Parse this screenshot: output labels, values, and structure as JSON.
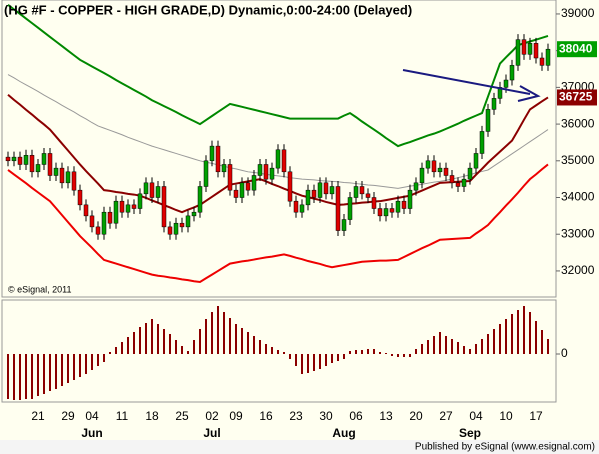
{
  "chart_data": [
    {
      "type": "candlestick",
      "title": "(HG #F - COPPER - HIGH GRADE,D) Dynamic,0:00-24:00 (Delayed)",
      "annotation": "© eSignal, 2011",
      "categories": [
        null,
        null,
        null,
        null,
        null,
        "21",
        null,
        null,
        null,
        null,
        "29",
        null,
        null,
        null,
        "04",
        null,
        null,
        null,
        null,
        "11",
        null,
        null,
        null,
        null,
        "18",
        null,
        null,
        null,
        null,
        "25",
        null,
        null,
        null,
        null,
        "02",
        null,
        null,
        null,
        "09",
        null,
        null,
        null,
        null,
        "16",
        null,
        null,
        null,
        null,
        "23",
        null,
        null,
        null,
        null,
        "30",
        null,
        null,
        null,
        null,
        "06",
        null,
        null,
        null,
        null,
        "13",
        null,
        null,
        null,
        null,
        "20",
        null,
        null,
        null,
        null,
        "27",
        null,
        null,
        null,
        null,
        "04",
        null,
        null,
        null,
        null,
        "10",
        null,
        null,
        null,
        null,
        "17",
        null,
        null
      ],
      "month_labels": [
        null,
        null,
        null,
        null,
        null,
        null,
        null,
        null,
        null,
        null,
        null,
        null,
        null,
        null,
        "Jun",
        null,
        null,
        null,
        null,
        null,
        null,
        null,
        null,
        null,
        null,
        null,
        null,
        null,
        null,
        null,
        null,
        null,
        null,
        null,
        "Jul",
        null,
        null,
        null,
        null,
        null,
        null,
        null,
        null,
        null,
        null,
        null,
        null,
        null,
        null,
        null,
        null,
        null,
        null,
        null,
        null,
        null,
        "Aug",
        null,
        null,
        null,
        null,
        null,
        null,
        null,
        null,
        null,
        null,
        null,
        null,
        null,
        null,
        null,
        null,
        null,
        null,
        null,
        null,
        "Sep",
        null,
        null,
        null,
        null,
        null,
        null,
        null,
        null,
        null,
        null,
        null,
        null,
        null
      ],
      "open": [
        35100,
        35000,
        35100,
        34900,
        35150,
        34700,
        34900,
        35200,
        34600,
        34800,
        34400,
        34700,
        34200,
        33800,
        33500,
        33200,
        33000,
        33600,
        33300,
        33900,
        33600,
        33800,
        33700,
        34100,
        34400,
        34000,
        34300,
        33200,
        33000,
        33300,
        33200,
        33500,
        33600,
        34300,
        35000,
        35400,
        34700,
        34900,
        34200,
        34000,
        34400,
        34200,
        34600,
        34900,
        34500,
        34800,
        35300,
        34700,
        33900,
        33600,
        33800,
        34200,
        34000,
        34400,
        34100,
        34300,
        33100,
        33400,
        34000,
        34300,
        34100,
        34000,
        33700,
        33500,
        33700,
        33600,
        33900,
        33700,
        34200,
        34400,
        34800,
        35000,
        34700,
        34800,
        34600,
        34400,
        34300,
        34500,
        34800,
        35200,
        35800,
        36400,
        36700,
        37000,
        37200,
        37600,
        38300,
        37900,
        38200,
        37800,
        37600
      ],
      "high": [
        35250,
        35250,
        35250,
        35300,
        35300,
        35050,
        35350,
        35350,
        34950,
        34950,
        34850,
        34850,
        34350,
        33950,
        33650,
        33350,
        33750,
        33750,
        34050,
        34050,
        33950,
        33950,
        34250,
        34550,
        34550,
        34450,
        34450,
        33350,
        33450,
        33450,
        33650,
        33750,
        34450,
        35150,
        35550,
        35550,
        35050,
        35050,
        34350,
        34550,
        34550,
        34750,
        35050,
        35050,
        34950,
        35450,
        35450,
        34850,
        34050,
        33950,
        34350,
        34350,
        34550,
        34550,
        34450,
        34450,
        33550,
        34150,
        34450,
        34450,
        34250,
        34150,
        33850,
        33850,
        33850,
        34050,
        34050,
        34350,
        34550,
        34950,
        35150,
        35150,
        34950,
        34950,
        34750,
        34550,
        34650,
        34950,
        35350,
        35950,
        36550,
        36850,
        37150,
        37350,
        37750,
        38450,
        38450,
        38350,
        38350,
        37950,
        38190
      ],
      "low": [
        34850,
        34850,
        34750,
        34750,
        34550,
        34550,
        34750,
        34450,
        34450,
        34250,
        34250,
        34050,
        33650,
        33350,
        33050,
        32850,
        32850,
        33150,
        33150,
        33450,
        33450,
        33550,
        33550,
        33950,
        33850,
        33850,
        33050,
        32850,
        32850,
        33050,
        33050,
        33350,
        33450,
        34150,
        34850,
        34550,
        34550,
        34050,
        33850,
        33850,
        34050,
        34050,
        34450,
        34350,
        34350,
        34650,
        34550,
        33750,
        33450,
        33450,
        33650,
        33850,
        33850,
        33950,
        33950,
        32950,
        32950,
        33250,
        33850,
        33950,
        33850,
        33550,
        33350,
        33350,
        33450,
        33450,
        33550,
        33550,
        34050,
        34250,
        34650,
        34550,
        34550,
        34450,
        34250,
        34150,
        34150,
        34350,
        34650,
        35050,
        35650,
        36250,
        36550,
        36850,
        37050,
        37450,
        37750,
        37750,
        37650,
        37450,
        37450
      ],
      "close": [
        35000,
        35100,
        34900,
        35150,
        34700,
        34900,
        35200,
        34600,
        34800,
        34400,
        34700,
        34200,
        33800,
        33500,
        33200,
        33000,
        33600,
        33300,
        33900,
        33600,
        33800,
        33700,
        34100,
        34400,
        34000,
        34300,
        33200,
        33000,
        33300,
        33200,
        33500,
        33600,
        34300,
        35000,
        35400,
        34700,
        34900,
        34200,
        34000,
        34400,
        34200,
        34600,
        34900,
        34500,
        34800,
        35300,
        34700,
        33900,
        33600,
        33800,
        34200,
        34000,
        34400,
        34100,
        34300,
        33100,
        33400,
        34000,
        34300,
        34100,
        34000,
        33700,
        33500,
        33700,
        33600,
        33900,
        33700,
        34200,
        34400,
        34800,
        35000,
        34700,
        34800,
        34600,
        34400,
        34300,
        34500,
        34800,
        35200,
        35800,
        36400,
        36700,
        37000,
        37200,
        37600,
        38300,
        37900,
        38200,
        37800,
        37600,
        38040
      ],
      "up_color": "#00a000",
      "down_color": "#e00000",
      "lines": [
        {
          "color": "#008800",
          "values": [
            39250,
            39125,
            39000,
            38875,
            38750,
            38625,
            38500,
            38375,
            38250,
            38125,
            38000,
            37875,
            37750,
            37660,
            37570,
            37480,
            37390,
            37300,
            37200,
            37110,
            37020,
            36930,
            36840,
            36750,
            36650,
            36570,
            36490,
            36410,
            36330,
            36240,
            36160,
            36080,
            36000,
            36110,
            36220,
            36330,
            36440,
            36550,
            36510,
            36470,
            36430,
            36390,
            36350,
            36310,
            36270,
            36230,
            36190,
            36150,
            36150,
            36150,
            36150,
            36150,
            36150,
            36150,
            36150,
            36150,
            36230,
            36300,
            36190,
            36070,
            35960,
            35850,
            35740,
            35620,
            35510,
            35400,
            35460,
            35510,
            35570,
            35630,
            35690,
            35740,
            35800,
            35870,
            35940,
            36010,
            36090,
            36160,
            36230,
            36300,
            36750,
            37200,
            37650,
            37820,
            37980,
            38150,
            38200,
            38250,
            38300,
            38350,
            38400
          ]
        },
        {
          "color": "#999999",
          "values": [
            37350,
            37260,
            37160,
            37070,
            36980,
            36890,
            36790,
            36700,
            36610,
            36510,
            36420,
            36330,
            36230,
            36140,
            36040,
            35950,
            35890,
            35830,
            35770,
            35710,
            35640,
            35580,
            35520,
            35460,
            35400,
            35350,
            35300,
            35250,
            35200,
            35150,
            35100,
            35050,
            35000,
            34960,
            34930,
            34890,
            34850,
            34810,
            34780,
            34740,
            34700,
            34680,
            34660,
            34630,
            34610,
            34590,
            34570,
            34540,
            34520,
            34500,
            34490,
            34480,
            34460,
            34450,
            34440,
            34430,
            34410,
            34400,
            34380,
            34360,
            34340,
            34330,
            34310,
            34290,
            34270,
            34250,
            34280,
            34310,
            34330,
            34360,
            34390,
            34420,
            34440,
            34470,
            34500,
            34540,
            34580,
            34620,
            34670,
            34710,
            34750,
            34860,
            34970,
            35080,
            35190,
            35300,
            35410,
            35520,
            35630,
            35740,
            35850
          ]
        },
        {
          "color": "#8b0000",
          "values": [
            36800,
            36660,
            36530,
            36390,
            36260,
            36120,
            35990,
            35850,
            35660,
            35470,
            35280,
            35090,
            34900,
            34720,
            34550,
            34380,
            34200,
            34180,
            34150,
            34130,
            34100,
            34080,
            34050,
            33990,
            33920,
            33860,
            33790,
            33730,
            33660,
            33600,
            33670,
            33730,
            33800,
            33910,
            34020,
            34130,
            34240,
            34350,
            34380,
            34410,
            34440,
            34470,
            34500,
            34440,
            34370,
            34310,
            34240,
            34180,
            34110,
            34050,
            34010,
            33970,
            33930,
            33880,
            33840,
            33800,
            33810,
            33830,
            33840,
            33860,
            33870,
            33890,
            33900,
            33930,
            33960,
            33990,
            34020,
            34050,
            34120,
            34190,
            34260,
            34330,
            34400,
            34410,
            34420,
            34430,
            34440,
            34450,
            34620,
            34780,
            34950,
            35100,
            35250,
            35400,
            35550,
            35830,
            36120,
            36400,
            36510,
            36620,
            36725
          ]
        },
        {
          "color": "#ee0000",
          "values": [
            34750,
            34630,
            34510,
            34390,
            34260,
            34140,
            34020,
            33900,
            33710,
            33520,
            33330,
            33140,
            32950,
            32790,
            32630,
            32460,
            32300,
            32250,
            32200,
            32150,
            32100,
            32050,
            32000,
            31950,
            31900,
            31870,
            31850,
            31820,
            31800,
            31770,
            31750,
            31720,
            31700,
            31800,
            31900,
            32000,
            32100,
            32200,
            32230,
            32260,
            32280,
            32310,
            32340,
            32370,
            32390,
            32420,
            32450,
            32410,
            32360,
            32320,
            32270,
            32230,
            32190,
            32140,
            32100,
            32130,
            32160,
            32190,
            32220,
            32250,
            32260,
            32270,
            32280,
            32280,
            32290,
            32300,
            32380,
            32460,
            32540,
            32620,
            32690,
            32770,
            32850,
            32860,
            32870,
            32880,
            32890,
            32900,
            33020,
            33130,
            33250,
            33430,
            33600,
            33780,
            33950,
            34130,
            34320,
            34500,
            34630,
            34770,
            34900
          ]
        }
      ],
      "price_labels": [
        {
          "value": 38040,
          "color": "#00a000"
        },
        {
          "value": 36725,
          "color": "#8b0000"
        }
      ],
      "ylim": [
        31290,
        39380
      ],
      "yticks": [
        32000,
        33000,
        34000,
        35000,
        36000,
        37000,
        38000,
        39000
      ]
    },
    {
      "type": "bar",
      "color": "#8b0000",
      "values": [
        -45,
        -46,
        -46,
        -45,
        -45,
        -42,
        -40,
        -37,
        -35,
        -32,
        -29,
        -26,
        -23,
        -20,
        -16,
        -12,
        -8,
        2,
        7,
        12,
        17,
        22,
        27,
        31,
        35,
        30,
        25,
        20,
        14,
        8,
        3,
        14,
        25,
        35,
        42,
        48,
        42,
        36,
        30,
        26,
        22,
        18,
        14,
        10,
        7,
        4,
        2,
        -5,
        -12,
        -20,
        -19,
        -17,
        -15,
        -12,
        -9,
        -7,
        -5,
        3,
        4,
        4,
        5,
        5,
        2,
        1,
        -2,
        -3,
        -3,
        -3,
        5,
        10,
        14,
        18,
        22,
        18,
        15,
        12,
        8,
        5,
        10,
        15,
        20,
        25,
        30,
        35,
        40,
        44,
        48,
        42,
        33,
        24,
        15
      ],
      "ylim": [
        -48,
        54
      ],
      "yticks": [
        0
      ]
    }
  ],
  "footer": "Published by eSignal (www.esignal.com)"
}
